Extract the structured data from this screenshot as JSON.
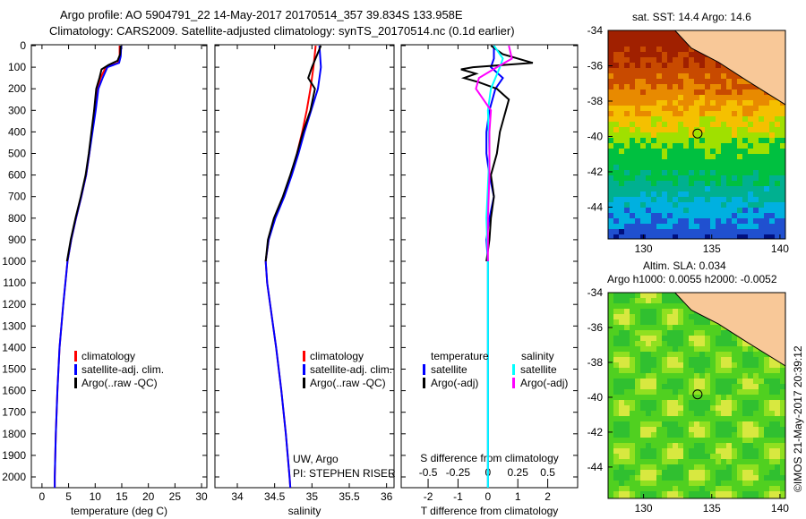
{
  "title_line1": "Argo profile: AO 5904791_22 14-May-2017 20170514_357 39.834S 133.958E",
  "title_line2": "Climatology: CARS2009. Satellite-adjusted climatology: synTS_20170514.nc (0.1d earlier)",
  "colors": {
    "clim": "#ff0000",
    "sat": "#0000ff",
    "argo": "#000000",
    "sal_sat": "#00ffff",
    "sal_argo": "#ff00ff"
  },
  "chart_data": [
    {
      "type": "line",
      "xlabel": "temperature (deg C)",
      "xlim": [
        -2,
        31
      ],
      "xticks": [
        0,
        5,
        10,
        15,
        20,
        25,
        30
      ],
      "ylim": [
        2100,
        0
      ],
      "yticks": [
        0,
        100,
        200,
        300,
        400,
        500,
        600,
        700,
        800,
        900,
        1000,
        1100,
        1200,
        1300,
        1400,
        1500,
        1600,
        1700,
        1800,
        1900,
        2000
      ],
      "legend": [
        "climatology",
        "satellite-adj. clim.",
        "Argo(..raw -QC)"
      ],
      "series": [
        {
          "name": "climatology",
          "color": "clim",
          "depth": [
            0,
            50,
            80,
            100,
            150,
            200,
            300,
            400,
            500,
            600,
            700,
            800,
            900,
            1000,
            1200,
            1400,
            1600,
            1800,
            2000,
            2060
          ],
          "values": [
            14.6,
            14.6,
            14.3,
            12,
            11,
            10.4,
            9.9,
            9.4,
            8.9,
            8.3,
            7.4,
            6.4,
            5.5,
            4.8,
            4,
            3.3,
            2.9,
            2.6,
            2.4,
            2.4
          ]
        },
        {
          "name": "satellite-adj. clim.",
          "color": "sat",
          "depth": [
            0,
            50,
            80,
            100,
            150,
            200,
            300,
            400,
            500,
            600,
            700,
            800,
            900,
            1000,
            1200,
            1400,
            1600,
            1800,
            2000,
            2060
          ],
          "values": [
            14.9,
            14.8,
            14.5,
            12.3,
            11.4,
            10.6,
            10.1,
            9.5,
            8.9,
            8.3,
            7.4,
            6.4,
            5.5,
            4.8,
            4,
            3.3,
            2.9,
            2.6,
            2.4,
            2.4
          ]
        },
        {
          "name": "Argo(..raw -QC)",
          "color": "argo",
          "depth": [
            0,
            40,
            70,
            90,
            110,
            150,
            200,
            300,
            400,
            500,
            600,
            700,
            800,
            900,
            1000
          ],
          "values": [
            14.8,
            14.7,
            14.2,
            12.5,
            11.2,
            10.8,
            10.2,
            9.8,
            9.3,
            8.8,
            8.2,
            7.3,
            6.3,
            5.4,
            4.7
          ]
        }
      ]
    },
    {
      "type": "line",
      "xlabel": "salinity",
      "xlim": [
        33.7,
        36.1
      ],
      "xticks": [
        34,
        34.5,
        35,
        35.5,
        36
      ],
      "ylim": [
        2100,
        0
      ],
      "legend": [
        "climatology",
        "satellite-adj. clim.",
        "Argo(..raw -QC)"
      ],
      "annotation": [
        "UW, Argo",
        "PI: STEPHEN RISER"
      ],
      "series": [
        {
          "name": "climatology",
          "color": "clim",
          "depth": [
            0,
            100,
            200,
            300,
            400,
            500,
            600,
            700,
            800,
            900,
            1000,
            1100,
            1200,
            1400,
            1600,
            1800,
            2000,
            2060
          ],
          "values": [
            35.05,
            35.02,
            34.98,
            34.93,
            34.87,
            34.8,
            34.72,
            34.62,
            34.5,
            34.42,
            34.38,
            34.4,
            34.44,
            34.52,
            34.59,
            34.65,
            34.7,
            34.71
          ]
        },
        {
          "name": "satellite-adj. clim.",
          "color": "sat",
          "depth": [
            0,
            100,
            200,
            300,
            400,
            500,
            600,
            700,
            800,
            900,
            1000,
            1100,
            1200,
            1400,
            1600,
            1800,
            2000,
            2060
          ],
          "values": [
            35.1,
            35.12,
            35.08,
            34.99,
            34.9,
            34.82,
            34.73,
            34.63,
            34.51,
            34.42,
            34.38,
            34.4,
            34.44,
            34.52,
            34.59,
            34.65,
            34.7,
            34.71
          ]
        },
        {
          "name": "Argo(..raw -QC)",
          "color": "argo",
          "depth": [
            0,
            100,
            150,
            200,
            300,
            400,
            500,
            600,
            700,
            800,
            900,
            1000
          ],
          "values": [
            35.12,
            35.0,
            34.95,
            35.04,
            34.98,
            34.88,
            34.8,
            34.71,
            34.61,
            34.49,
            34.41,
            34.38
          ]
        }
      ]
    },
    {
      "type": "line",
      "xlabel": "T difference from climatology",
      "xlabel2": "S difference from climatology",
      "xlim": [
        -2.9,
        3
      ],
      "xticks": [
        -2,
        -1,
        0,
        1,
        2
      ],
      "xticks2": [
        "-0.5",
        "-0.25",
        "0",
        "0.25",
        "0.5"
      ],
      "ylim": [
        2100,
        0
      ],
      "legend_headers": [
        "temperature",
        "salinity"
      ],
      "legend": [
        "satellite",
        "Argo(-adj)",
        "satellite",
        "Argo(-adj)"
      ],
      "series": [
        {
          "name": "T satellite",
          "color": "sat",
          "depth": [
            0,
            60,
            100,
            150,
            200,
            300,
            400,
            500,
            600,
            700,
            800,
            900,
            1000,
            1100,
            2060
          ],
          "values": [
            0.2,
            0.2,
            0.1,
            0.5,
            0.25,
            0.05,
            -0.05,
            -0.05,
            0.05,
            0.2,
            0.05,
            -0.05,
            0,
            0,
            0
          ]
        },
        {
          "name": "T Argo(-adj)",
          "color": "argo",
          "depth": [
            0,
            40,
            80,
            100,
            110,
            130,
            150,
            170,
            200,
            250,
            300,
            350,
            400,
            500,
            600,
            700,
            800,
            900,
            1000
          ],
          "values": [
            0.1,
            0.5,
            1.5,
            -0.5,
            -0.9,
            -0.4,
            -0.8,
            -0.3,
            0.3,
            0.7,
            0.6,
            0.5,
            0.4,
            0.3,
            0.1,
            0.2,
            0.1,
            0.05,
            -0.05
          ]
        },
        {
          "name": "S satellite",
          "color": "sal_sat",
          "depth": [
            0,
            60,
            100,
            200,
            300,
            500,
            800,
            1000,
            2060
          ],
          "values": [
            0.2,
            0.5,
            0.4,
            0.1,
            0,
            0.05,
            -0.05,
            0,
            0
          ]
        },
        {
          "name": "S Argo(-adj)",
          "color": "sal_argo",
          "depth": [
            0,
            60,
            100,
            150,
            200,
            300,
            400,
            600,
            800,
            1000
          ],
          "values": [
            0.7,
            0.8,
            0.3,
            -0.3,
            -0.4,
            0.1,
            0.05,
            0.05,
            0,
            0
          ]
        }
      ]
    }
  ],
  "map_sst": {
    "title": "sat. SST: 14.4  Argo: 14.6",
    "lat_ticks": [
      "-34",
      "-36",
      "-38",
      "-40",
      "-42",
      "-44"
    ],
    "lon_ticks": [
      "130",
      "135",
      "140"
    ]
  },
  "map_sla": {
    "title1": "Altim. SLA: 0.034",
    "title2": "Argo h1000: 0.0055 h2000: -0.0052",
    "lat_ticks": [
      "-34",
      "-36",
      "-38",
      "-40",
      "-42",
      "-44"
    ],
    "lon_ticks": [
      "130",
      "135",
      "140"
    ]
  },
  "credit": "©IMOS 21-May-2017 20:39:12"
}
